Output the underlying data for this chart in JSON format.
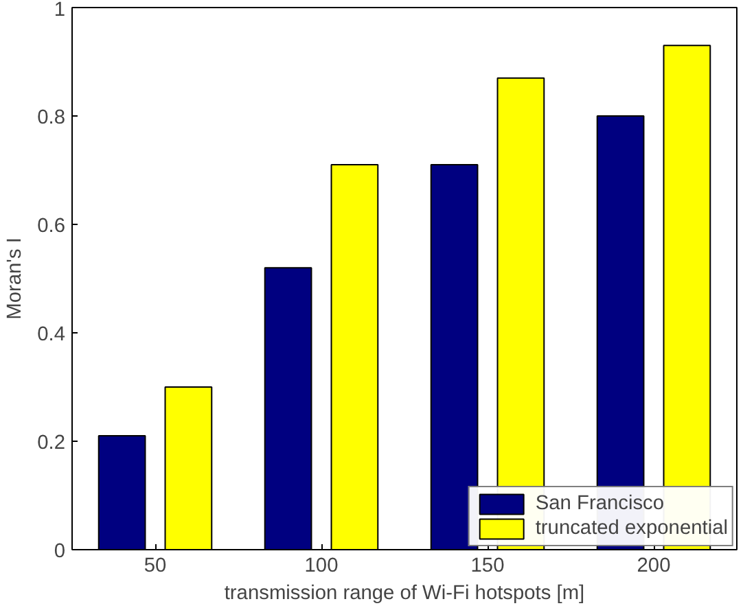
{
  "chart_data": {
    "type": "bar",
    "xlabel": "transmission range of Wi-Fi hotspots [m]",
    "ylabel": "Moran's I",
    "categories": [
      "50",
      "100",
      "150",
      "200"
    ],
    "series": [
      {
        "name": "San Francisco",
        "color": "#000080",
        "values": [
          0.21,
          0.52,
          0.71,
          0.8
        ]
      },
      {
        "name": "truncated exponential",
        "color": "#ffff00",
        "values": [
          0.3,
          0.71,
          0.87,
          0.93
        ]
      }
    ],
    "ylim": [
      0,
      1
    ],
    "yticks": [
      0,
      0.2,
      0.4,
      0.6,
      0.8,
      1
    ],
    "grid": false,
    "legend": "bottom right"
  }
}
